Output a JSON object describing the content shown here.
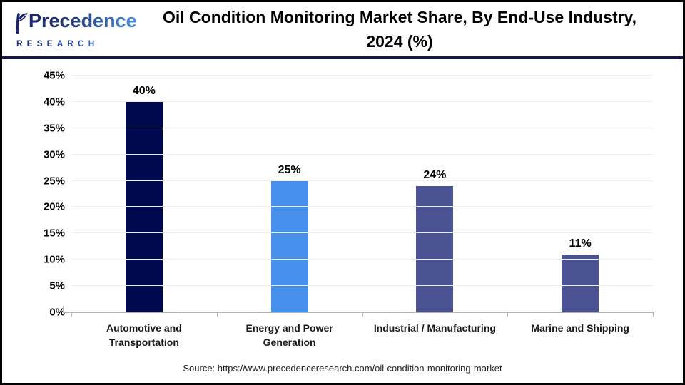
{
  "header": {
    "brand_line1": "Precedence",
    "brand_line2": "RESEARCH",
    "title_lines": {
      "0": "Oil Condition Monitoring Market Share, By End-Use Industry,",
      "1": "2024 (%)"
    }
  },
  "chart_data": {
    "type": "bar",
    "title": "Oil Condition Monitoring Market Share, By End-Use Industry, 2024 (%)",
    "categories": [
      "Automotive and Transportation",
      "Energy and Power Generation",
      "Industrial / Manufacturing",
      "Marine and Shipping"
    ],
    "values": [
      40,
      25,
      24,
      11
    ],
    "value_labels": [
      "40%",
      "25%",
      "24%",
      "11%"
    ],
    "bar_colors": [
      "#01094e",
      "#4690ec",
      "#4b5292",
      "#4b5292"
    ],
    "xlabel": "",
    "ylabel": "",
    "ylim": [
      0,
      45
    ],
    "ytick_step": 5,
    "ytick_labels": [
      "0%",
      "5%",
      "10%",
      "15%",
      "20%",
      "25%",
      "30%",
      "35%",
      "40%",
      "45%"
    ],
    "grid": true,
    "legend": false,
    "gridline_color": "#ededed",
    "axis_color": "#b1b1b1"
  },
  "footer": {
    "source": "Source: https://www.precedenceresearch.com/oil-condition-monitoring-market"
  }
}
